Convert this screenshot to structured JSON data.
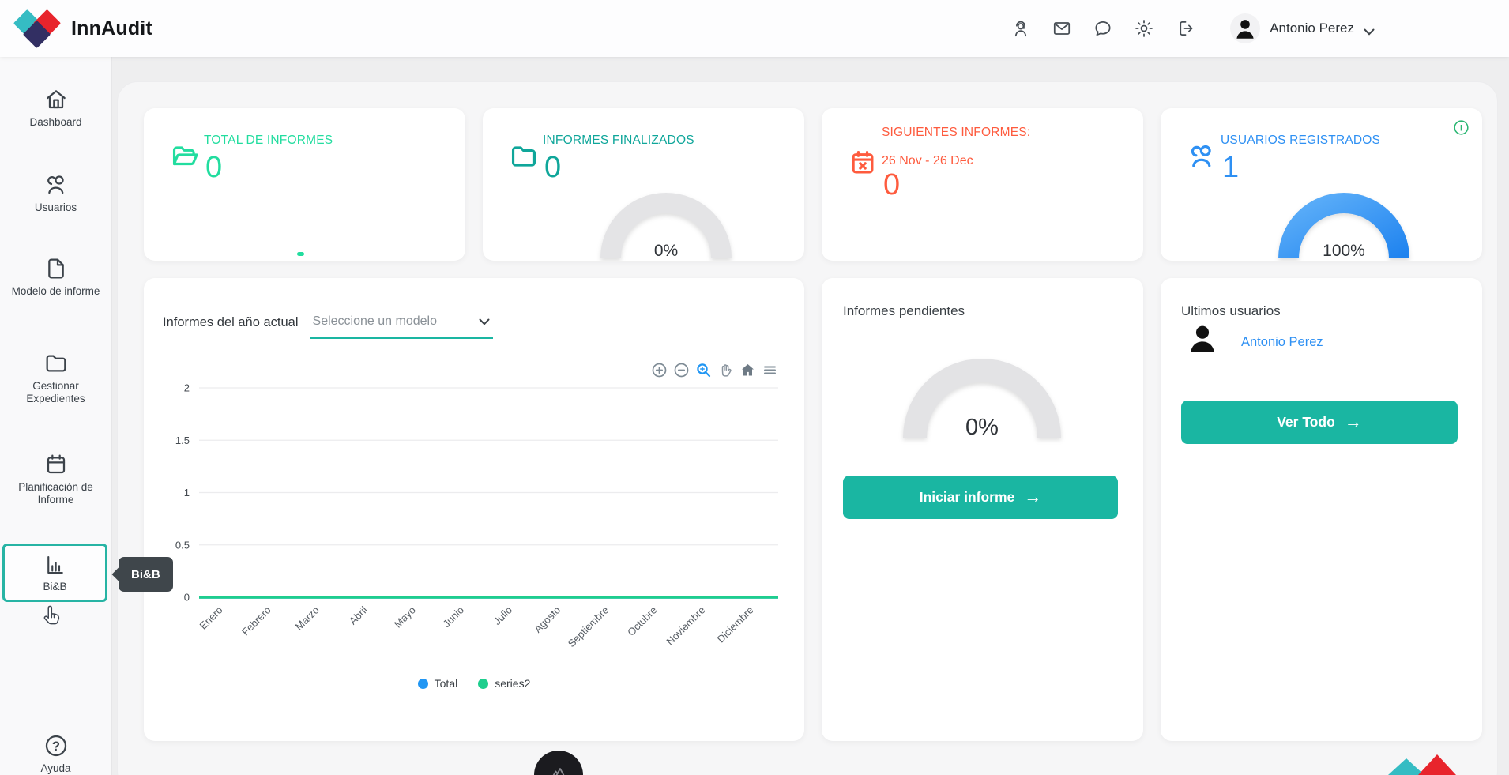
{
  "brand": {
    "name": "InnAudit"
  },
  "theme": {
    "accent": "#1ab6a2",
    "link_blue": "#2e90f3",
    "logo_teal": "#35bcc3",
    "logo_red": "#e8242c",
    "logo_navy": "#322f63"
  },
  "header": {
    "user_name": "Antonio Perez"
  },
  "sidebar": {
    "items": [
      {
        "label": "Dashboard"
      },
      {
        "label": "Usuarios"
      },
      {
        "label": "Modelo de informe"
      },
      {
        "label": "Gestionar Expedientes"
      },
      {
        "label": "Planificación de Informe"
      },
      {
        "label": "Bi&B"
      }
    ],
    "active_item": "Bi&B",
    "tooltip": "Bi&B",
    "help_label": "Ayuda"
  },
  "stats": [
    {
      "title": "TOTAL DE INFORMES",
      "value": "0",
      "color": "#22dd9f"
    },
    {
      "title": "INFORMES FINALIZADOS",
      "value": "0",
      "color": "#0fa69a",
      "gauge_label": "0%"
    },
    {
      "title": "SIGUIENTES INFORMES:",
      "subtitle": "26 Nov - 26 Dec",
      "value": "0",
      "color": "#fe5b3e"
    },
    {
      "title": "USUARIOS REGISTRADOS",
      "value": "1",
      "color": "#2e90f3",
      "gauge_label": "100%"
    }
  ],
  "chart_card": {
    "title": "Informes del año actual",
    "select_placeholder": "Seleccione un modelo"
  },
  "pending_card": {
    "title": "Informes pendientes",
    "gauge_label": "0%",
    "button_label": "Iniciar informe"
  },
  "users_card": {
    "title": "Ultimos usuarios",
    "user_name": "Antonio Perez",
    "button_label": "Ver Todo"
  },
  "chart_data": {
    "type": "line",
    "title": "Informes del año actual",
    "categories": [
      "Enero",
      "Febrero",
      "Marzo",
      "Abril",
      "Mayo",
      "Junio",
      "Julio",
      "Agosto",
      "Septiembre",
      "Octubre",
      "Noviembre",
      "Diciembre"
    ],
    "series": [
      {
        "name": "Total",
        "color": "#2196f3",
        "values": [
          0,
          0,
          0,
          0,
          0,
          0,
          0,
          0,
          0,
          0,
          0,
          0
        ]
      },
      {
        "name": "series2",
        "color": "#1ece8d",
        "values": [
          0,
          0,
          0,
          0,
          0,
          0,
          0,
          0,
          0,
          0,
          0,
          0
        ]
      }
    ],
    "xlabel": "",
    "ylabel": "",
    "ylim": [
      0,
      2
    ],
    "yticks": [
      0,
      0.5,
      1,
      1.5,
      2
    ],
    "grid": true,
    "legend_position": "bottom"
  }
}
